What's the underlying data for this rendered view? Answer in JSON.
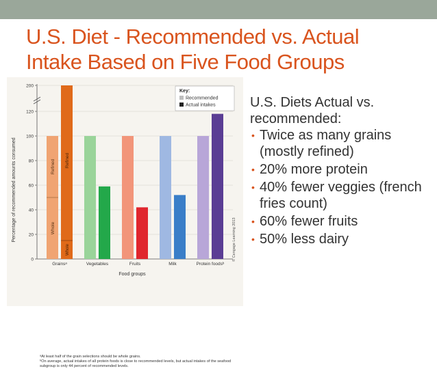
{
  "slide": {
    "title_lines": [
      "U.S. Diet - Recommended vs. Actual",
      "Intake Based on Five Food Groups"
    ],
    "bullets_intro": "U.S. Diets Actual vs. recommended:",
    "bullets": [
      "Twice as many grains (mostly refined)",
      "20% more protein",
      "40% fewer veggies (french fries count)",
      "60% fewer fruits",
      "50% less dairy"
    ],
    "credit": "© Cengage Learning 2013"
  },
  "chart_data": {
    "type": "bar",
    "categories": [
      "Grainsᵃ",
      "Vegetables",
      "Fruits",
      "Milk",
      "Protein foodsᵇ"
    ],
    "series": [
      {
        "name": "Recommended",
        "values": [
          100,
          100,
          100,
          100,
          100
        ]
      },
      {
        "name": "Actual intakes",
        "values": [
          200,
          59,
          42,
          52,
          118
        ]
      }
    ],
    "grain_segments": {
      "recommended": [
        {
          "label": "Whole",
          "value": 50
        },
        {
          "label": "Refined",
          "value": 50
        }
      ],
      "actual": [
        {
          "label": "Whole",
          "value": 15
        },
        {
          "label": "Refined",
          "value": 185
        }
      ]
    },
    "ylabel": "Percentage of recommended amounts consumed",
    "xlabel": "Food groups",
    "yticks": [
      0,
      20,
      40,
      60,
      80,
      100,
      120,
      200
    ],
    "axis_break": "between 120 and 200",
    "ylim": [
      0,
      200
    ],
    "legend_title": "Key:",
    "legend_position": "top-right",
    "colors": {
      "Grainsᵃ": [
        "#f0a472",
        "#e06a1a"
      ],
      "Vegetables": [
        "#9ad49a",
        "#23a84a"
      ],
      "Fruits": [
        "#f2957a",
        "#e0262e"
      ],
      "Milk": [
        "#9fb8e2",
        "#3a7ec8"
      ],
      "Protein foodsᵇ": [
        "#b8a6d8",
        "#5a3d94"
      ]
    },
    "footnotes": [
      "ᵃAt least half of the grain selections should be whole grains.",
      "ᵇOn average, actual intakes of all protein foods is close to recommended levels, but actual intakes of the seafood subgroup is only 44 percent of recommended levels."
    ]
  }
}
